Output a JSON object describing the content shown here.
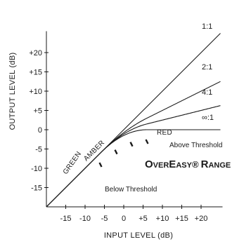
{
  "chart_data": {
    "type": "line",
    "xlabel": "INPUT LEVEL (dB)",
    "ylabel": "OUTPUT LEVEL (dB)",
    "xlim": [
      -20,
      25
    ],
    "ylim": [
      -20,
      25
    ],
    "x_ticks": [
      -15,
      -10,
      -5,
      0,
      5,
      10,
      15,
      20
    ],
    "x_tick_labels": [
      "-15",
      "-10",
      "-5",
      "0",
      "+5",
      "+10",
      "+15",
      "+20"
    ],
    "y_ticks": [
      -15,
      -10,
      -5,
      0,
      5,
      10,
      15,
      20
    ],
    "y_tick_labels": [
      "-15",
      "-10",
      "-5",
      "0",
      "+5",
      "+10",
      "+15",
      "+20"
    ],
    "threshold_db": 0,
    "knee_db": [
      -6,
      6
    ],
    "series": [
      {
        "name": "1:1",
        "ratio": 1
      },
      {
        "name": "2:1",
        "ratio": 2
      },
      {
        "name": "4:1",
        "ratio": 4
      },
      {
        "name": "∞:1",
        "ratio": "inf"
      }
    ],
    "zone_labels": [
      {
        "text": "GREEN",
        "x_from": -6,
        "x_to": -2
      },
      {
        "text": "AMBER",
        "x_from": -2,
        "x_to": 2
      },
      {
        "text": "RED",
        "x_from": 2,
        "x_to": 6
      }
    ],
    "annotations": {
      "above": "Above Threshold",
      "below": "Below Threshold",
      "range_title": {
        "caps1": "O",
        "small1": "VER",
        "caps2": "E",
        "small2": "ASY",
        "reg": "®",
        "space": " ",
        "caps3": "R",
        "small3": "ANGE"
      }
    }
  }
}
